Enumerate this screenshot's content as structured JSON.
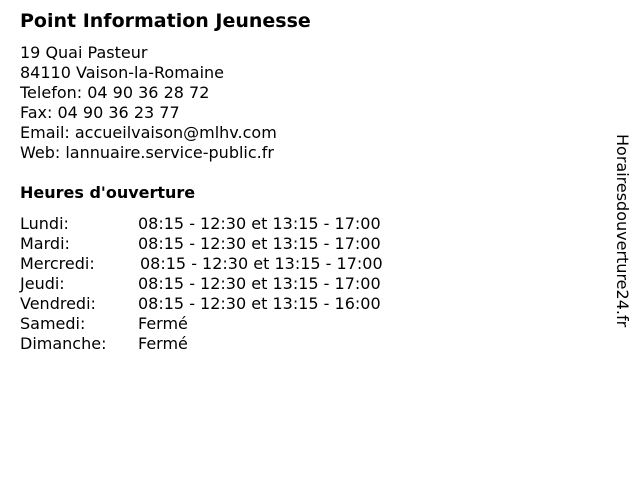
{
  "title": "Point Information Jeunesse",
  "info": {
    "street": "19 Quai Pasteur",
    "city": "84110 Vaison-la-Romaine",
    "phone": "Telefon: 04 90 36 28 72",
    "fax": "Fax: 04 90 36 23 77",
    "email": "Email: accueilvaison@mlhv.com",
    "web": "Web: lannuaire.service-public.fr"
  },
  "hours_title": "Heures d'ouverture",
  "hours": [
    {
      "day": "Lundi:",
      "time": "08:15 - 12:30 et 13:15 - 17:00"
    },
    {
      "day": "Mardi:",
      "time": "08:15 - 12:30 et 13:15 - 17:00"
    },
    {
      "day": "Mercredi:",
      "time": "08:15 - 12:30 et 13:15 - 17:00"
    },
    {
      "day": "Jeudi:",
      "time": "08:15 - 12:30 et 13:15 - 17:00"
    },
    {
      "day": "Vendredi:",
      "time": "08:15 - 12:30 et 13:15 - 16:00"
    },
    {
      "day": "Samedi:",
      "time": "Fermé"
    },
    {
      "day": "Dimanche:",
      "time": "Fermé"
    }
  ],
  "watermark": "Horairesdouverture24.fr"
}
